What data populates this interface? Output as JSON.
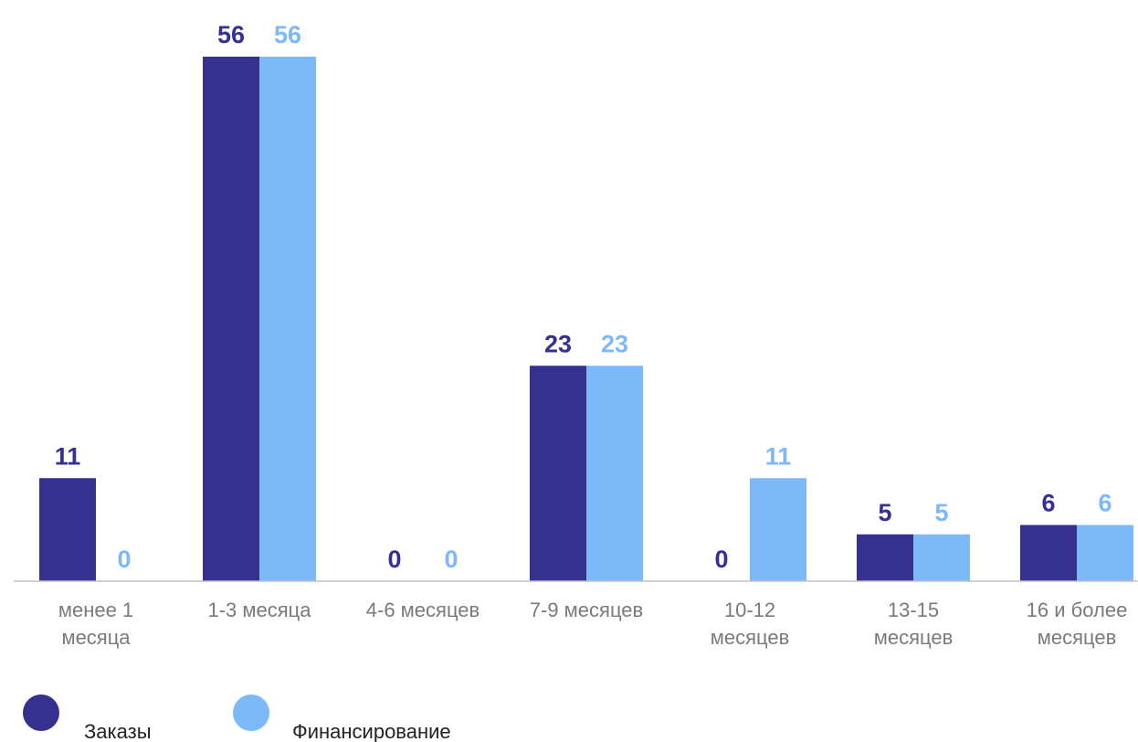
{
  "colors": {
    "series_1": "#36318f",
    "series_2": "#7db8f8",
    "axis": "#c0c0c0",
    "tick_text": "#7a7a7a"
  },
  "chart_data": {
    "type": "bar",
    "title": "",
    "xlabel": "",
    "ylabel": "",
    "categories": [
      [
        "менее 1",
        "месяца"
      ],
      [
        "1-3 месяца"
      ],
      [
        "4-6 месяцев"
      ],
      [
        "7-9 месяцев"
      ],
      [
        "10-12",
        "месяцев"
      ],
      [
        "13-15",
        "месяцев"
      ],
      [
        "16 и более",
        "месяцев"
      ]
    ],
    "series": [
      {
        "name": "Заказы",
        "values": [
          11,
          56,
          0,
          23,
          0,
          5,
          6
        ]
      },
      {
        "name": "Финансирование",
        "values": [
          0,
          56,
          0,
          23,
          11,
          5,
          6
        ]
      }
    ],
    "ylim": [
      0,
      56
    ],
    "grid": false,
    "data_labels": true,
    "legend_position": "bottom-left"
  }
}
